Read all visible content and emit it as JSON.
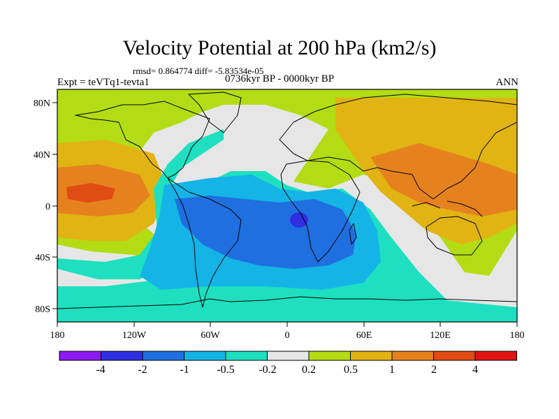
{
  "title": "Velocity Potential at 200 hPa (km2/s)",
  "stats": "rmsd= 0.864774 diff= -5.83534e-05",
  "experiment": "Expt = teVTq1-tevta1",
  "period": "0736kyr BP - 0000kyr BP",
  "season": "ANN",
  "map": {
    "x_ticks": [
      "180",
      "120W",
      "60W",
      "0",
      "60E",
      "120E",
      "180"
    ],
    "y_ticks": [
      "80N",
      "40N",
      "0",
      "40S",
      "80S"
    ]
  },
  "colorbar": {
    "labels": [
      "-4",
      "-2",
      "-1",
      "-0.5",
      "-0.2",
      "0.2",
      "0.5",
      "1",
      "2",
      "4"
    ],
    "colors": [
      "#8b1bf0",
      "#2f2ee0",
      "#1f6fe0",
      "#14b4e6",
      "#1ee0c0",
      "#e6e6e6",
      "#b4dc14",
      "#e1b414",
      "#e6821e",
      "#e14b14",
      "#e11414"
    ]
  }
}
